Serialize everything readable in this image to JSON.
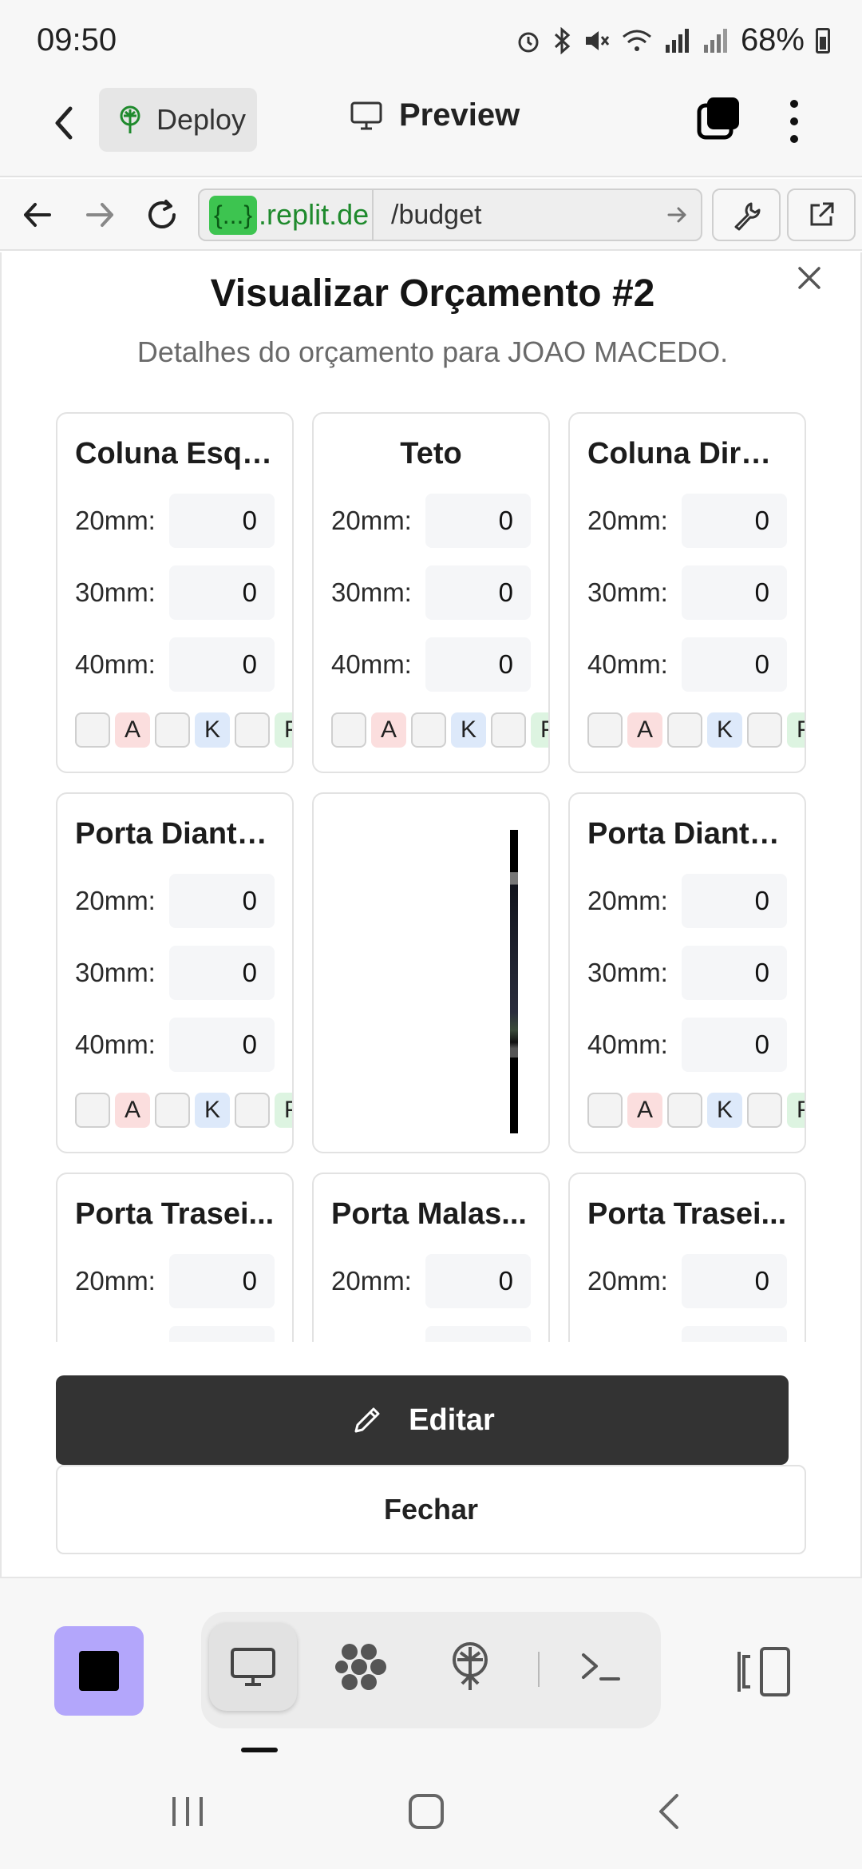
{
  "status_bar": {
    "time": "09:50",
    "battery": "68%",
    "icons": [
      "alarm-icon",
      "bluetooth-icon",
      "mute-icon",
      "wifi-icon",
      "signal-icon",
      "signal-icon-2",
      "battery-icon"
    ]
  },
  "app_header": {
    "deploy_label": "Deploy",
    "preview_label": "Preview"
  },
  "url_bar": {
    "host_chip": "{...}",
    "host_domain": ".replit.de",
    "path": "/budget"
  },
  "modal": {
    "title": "Visualizar Orçamento #2",
    "subtitle": "Detalhes do orçamento para JOAO MACEDO.",
    "size_labels": [
      "20mm:",
      "30mm:",
      "40mm:"
    ],
    "chip_letters": [
      "A",
      "K",
      "P"
    ],
    "cards": [
      {
        "title": "Coluna Esqu...",
        "values": [
          "0",
          "0",
          "0"
        ]
      },
      {
        "title": "Teto",
        "values": [
          "0",
          "0",
          "0"
        ]
      },
      {
        "title": "Coluna Direita",
        "values": [
          "0",
          "0",
          "0"
        ]
      },
      {
        "title": "Porta Diante...",
        "values": [
          "0",
          "0",
          "0"
        ]
      },
      {
        "title": "",
        "image": true
      },
      {
        "title": "Porta Diante...",
        "values": [
          "0",
          "0",
          "0"
        ]
      },
      {
        "title": "Porta Trasei...",
        "values": [
          "0"
        ]
      },
      {
        "title": "Porta Malas...",
        "values": [
          "0"
        ]
      },
      {
        "title": "Porta Trasei...",
        "values": [
          "0"
        ]
      }
    ],
    "edit_label": "Editar",
    "close_label": "Fechar"
  },
  "colors": {
    "accent_green": "#3dc450",
    "stop_button": "#b3a6fb",
    "edit_button": "#333333"
  }
}
